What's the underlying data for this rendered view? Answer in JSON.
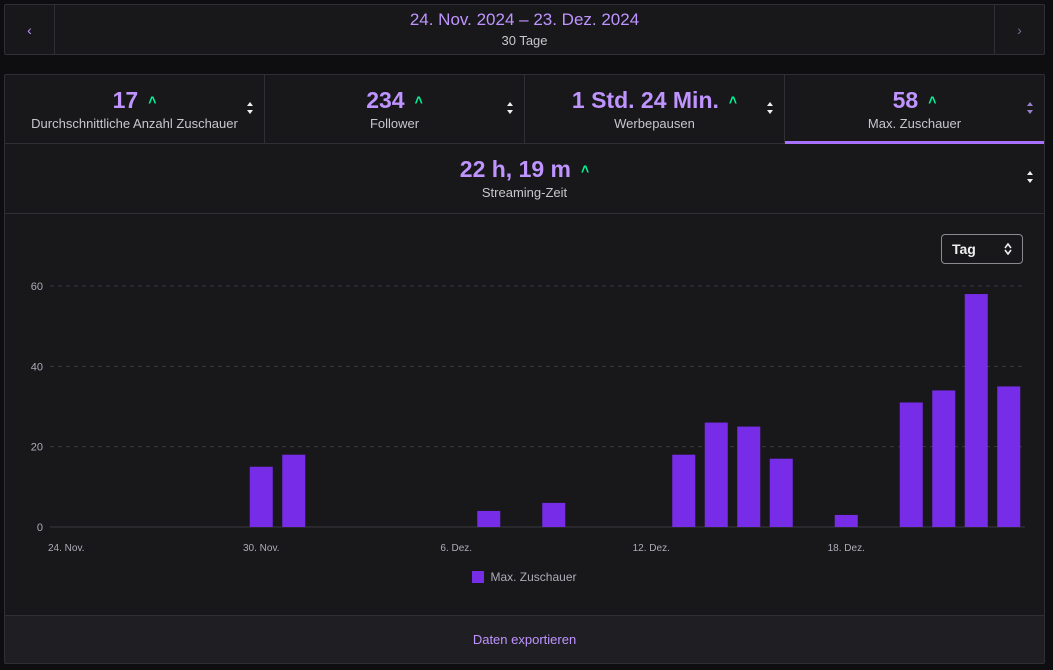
{
  "date_nav": {
    "range": "24. Nov. 2024 – 23. Dez. 2024",
    "days": "30 Tage",
    "prev_icon": "chevron-left-icon",
    "next_icon": "chevron-right-icon"
  },
  "metrics": [
    {
      "value": "17",
      "label": "Durchschnittliche Anzahl Zuschauer",
      "trend": "up"
    },
    {
      "value": "234",
      "label": "Follower",
      "trend": "up"
    },
    {
      "value": "1 Std. 24 Min.",
      "label": "Werbepausen",
      "trend": "up"
    },
    {
      "value": "58",
      "label": "Max. Zuschauer",
      "trend": "up",
      "active": true
    }
  ],
  "metric_wide": {
    "value": "22 h, 19 m",
    "label": "Streaming-Zeit",
    "trend": "up"
  },
  "period_select": {
    "value": "Tag"
  },
  "export": {
    "label": "Daten exportieren"
  },
  "colors": {
    "accent": "#bf94ff",
    "bar": "#772ce8",
    "trend_up": "#00f593"
  },
  "chart_data": {
    "type": "bar",
    "categories": [
      "24. Nov.",
      "25. Nov.",
      "26. Nov.",
      "27. Nov.",
      "28. Nov.",
      "29. Nov.",
      "30. Nov.",
      "1. Dez.",
      "2. Dez.",
      "3. Dez.",
      "4. Dez.",
      "5. Dez.",
      "6. Dez.",
      "7. Dez.",
      "8. Dez.",
      "9. Dez.",
      "10. Dez.",
      "11. Dez.",
      "12. Dez.",
      "13. Dez.",
      "14. Dez.",
      "15. Dez.",
      "16. Dez.",
      "17. Dez.",
      "18. Dez.",
      "19. Dez.",
      "20. Dez.",
      "21. Dez.",
      "22. Dez.",
      "23. Dez."
    ],
    "x_tick_labels": [
      "24. Nov.",
      "30. Nov.",
      "6. Dez.",
      "12. Dez.",
      "18. Dez."
    ],
    "series": [
      {
        "name": "Max. Zuschauer",
        "values": [
          0,
          0,
          0,
          0,
          0,
          0,
          15,
          18,
          0,
          0,
          0,
          0,
          0,
          4,
          0,
          6,
          0,
          0,
          0,
          18,
          26,
          25,
          17,
          0,
          3,
          0,
          31,
          34,
          58,
          35
        ]
      }
    ],
    "ylim": [
      0,
      60
    ],
    "yticks": [
      0,
      20,
      40,
      60
    ],
    "grid": true,
    "legend": "bottom-center"
  }
}
